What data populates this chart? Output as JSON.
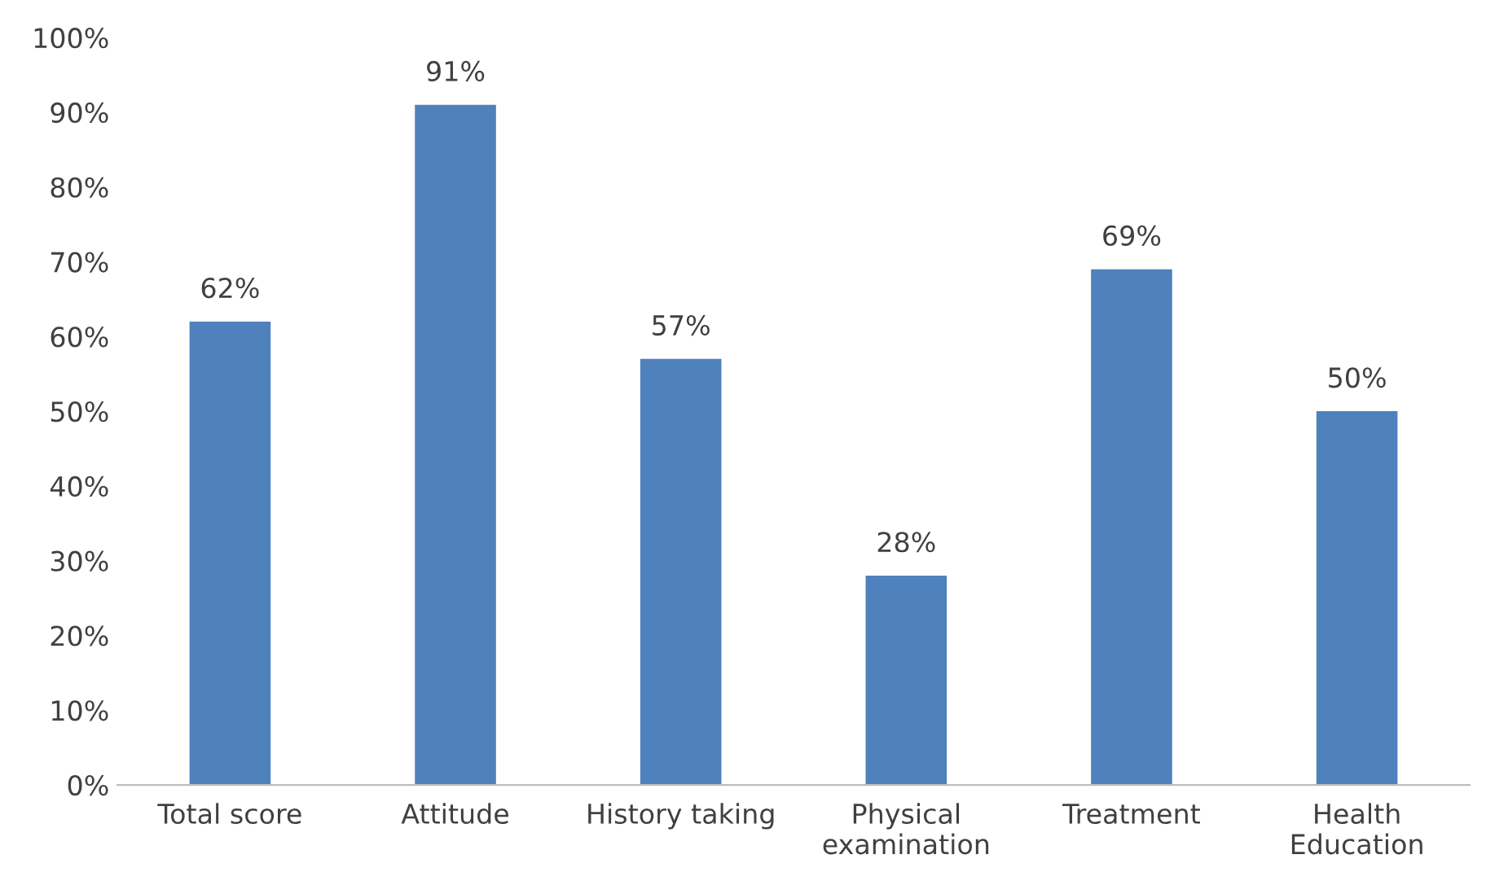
{
  "chart_data": {
    "type": "bar",
    "categories": [
      "Total score",
      "Attitude",
      "History taking",
      "Physical\nexamination",
      "Treatment",
      "Health\nEducation"
    ],
    "values": [
      62,
      91,
      57,
      28,
      69,
      50
    ],
    "value_labels": [
      "62%",
      "91%",
      "57%",
      "28%",
      "69%",
      "50%"
    ],
    "color": "#4f81bd",
    "ylim": [
      0,
      100
    ],
    "yticks": [
      {
        "value": 0,
        "label": "0%"
      },
      {
        "value": 10,
        "label": "10%"
      },
      {
        "value": 20,
        "label": "20%"
      },
      {
        "value": 30,
        "label": "30%"
      },
      {
        "value": 40,
        "label": "40%"
      },
      {
        "value": 50,
        "label": "50%"
      },
      {
        "value": 60,
        "label": "60%"
      },
      {
        "value": 70,
        "label": "70%"
      },
      {
        "value": 80,
        "label": "80%"
      },
      {
        "value": 90,
        "label": "90%"
      },
      {
        "value": 100,
        "label": "100%"
      }
    ],
    "grid": false,
    "legend": false
  }
}
